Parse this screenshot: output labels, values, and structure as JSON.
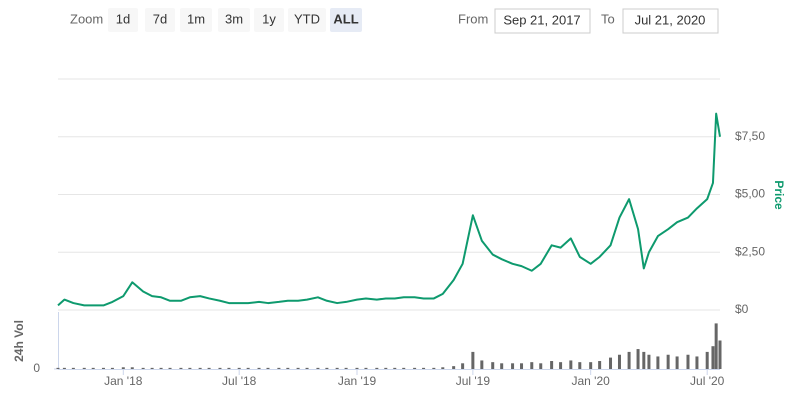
{
  "range_selector": {
    "zoom_label": "Zoom",
    "buttons": [
      "1d",
      "7d",
      "1m",
      "3m",
      "1y",
      "YTD",
      "ALL"
    ],
    "selected": 6,
    "from_label": "From",
    "from": "Sep 21, 2017",
    "to_label": "To",
    "to": "Jul 21, 2020"
  },
  "chart_data": {
    "type": "line",
    "ylabel": "Price",
    "x": [
      "2017-09-21",
      "2017-10-01",
      "2017-10-15",
      "2017-11-01",
      "2017-11-15",
      "2017-12-01",
      "2017-12-15",
      "2018-01-01",
      "2018-01-15",
      "2018-02-01",
      "2018-02-15",
      "2018-03-01",
      "2018-03-15",
      "2018-04-01",
      "2018-04-15",
      "2018-05-01",
      "2018-05-15",
      "2018-06-01",
      "2018-06-15",
      "2018-07-01",
      "2018-07-15",
      "2018-08-01",
      "2018-08-15",
      "2018-09-01",
      "2018-09-15",
      "2018-10-01",
      "2018-10-15",
      "2018-11-01",
      "2018-11-15",
      "2018-12-01",
      "2018-12-15",
      "2019-01-01",
      "2019-01-15",
      "2019-02-01",
      "2019-02-15",
      "2019-03-01",
      "2019-03-15",
      "2019-04-01",
      "2019-04-15",
      "2019-05-01",
      "2019-05-15",
      "2019-06-01",
      "2019-06-15",
      "2019-07-01",
      "2019-07-15",
      "2019-08-01",
      "2019-08-15",
      "2019-09-01",
      "2019-09-15",
      "2019-10-01",
      "2019-10-15",
      "2019-11-01",
      "2019-11-15",
      "2019-12-01",
      "2019-12-15",
      "2020-01-01",
      "2020-01-15",
      "2020-02-01",
      "2020-02-15",
      "2020-03-01",
      "2020-03-15",
      "2020-03-24",
      "2020-04-01",
      "2020-04-15",
      "2020-05-01",
      "2020-05-15",
      "2020-06-01",
      "2020-06-15",
      "2020-07-01",
      "2020-07-10",
      "2020-07-15",
      "2020-07-21"
    ],
    "series": [
      {
        "color": "#0e9a6e",
        "values": [
          0.2,
          0.45,
          0.3,
          0.2,
          0.2,
          0.2,
          0.35,
          0.6,
          1.2,
          0.8,
          0.6,
          0.55,
          0.4,
          0.4,
          0.55,
          0.6,
          0.5,
          0.4,
          0.3,
          0.3,
          0.3,
          0.35,
          0.3,
          0.35,
          0.4,
          0.4,
          0.45,
          0.55,
          0.4,
          0.3,
          0.35,
          0.45,
          0.5,
          0.45,
          0.5,
          0.5,
          0.55,
          0.55,
          0.5,
          0.5,
          0.7,
          1.3,
          2.0,
          4.1,
          3.0,
          2.4,
          2.2,
          2.0,
          1.9,
          1.7,
          2.0,
          2.8,
          2.7,
          3.1,
          2.3,
          2.0,
          2.3,
          2.8,
          4.0,
          4.8,
          3.5,
          1.8,
          2.5,
          3.2,
          3.5,
          3.8,
          4.0,
          4.4,
          4.8,
          5.5,
          8.5,
          7.5
        ]
      }
    ],
    "xlim": [
      "2017-09-21",
      "2020-07-21"
    ],
    "xticks": [
      {
        "value": "2018-01-01",
        "label": "Jan '18"
      },
      {
        "value": "2018-07-01",
        "label": "Jul '18"
      },
      {
        "value": "2019-01-01",
        "label": "Jan '19"
      },
      {
        "value": "2019-07-01",
        "label": "Jul '19"
      },
      {
        "value": "2020-01-01",
        "label": "Jan '20"
      },
      {
        "value": "2020-07-01",
        "label": "Jul '20"
      }
    ],
    "ylim": [
      0,
      10
    ],
    "yticks": [
      {
        "value": 0,
        "label": "$0"
      },
      {
        "value": 2.5,
        "label": "$2,50"
      },
      {
        "value": 5,
        "label": "$5,00"
      },
      {
        "value": 7.5,
        "label": "$7,50"
      }
    ],
    "grid": true,
    "volume": {
      "type": "bar",
      "ylabel": "24h Vol",
      "color": "#666666",
      "ylim": [
        0,
        100
      ],
      "yticks": [
        0
      ],
      "values": [
        2,
        2,
        2,
        2,
        2,
        2,
        2,
        3,
        3,
        2,
        2,
        2,
        2,
        2,
        2,
        2,
        2,
        2,
        2,
        2,
        2,
        2,
        2,
        2,
        2,
        2,
        2,
        2,
        2,
        2,
        2,
        2,
        2,
        2,
        2,
        2,
        2,
        2,
        2,
        2,
        3,
        5,
        10,
        30,
        15,
        12,
        10,
        10,
        10,
        12,
        10,
        14,
        12,
        15,
        12,
        12,
        14,
        20,
        25,
        30,
        35,
        30,
        25,
        22,
        25,
        22,
        25,
        22,
        30,
        40,
        80,
        50
      ]
    }
  }
}
